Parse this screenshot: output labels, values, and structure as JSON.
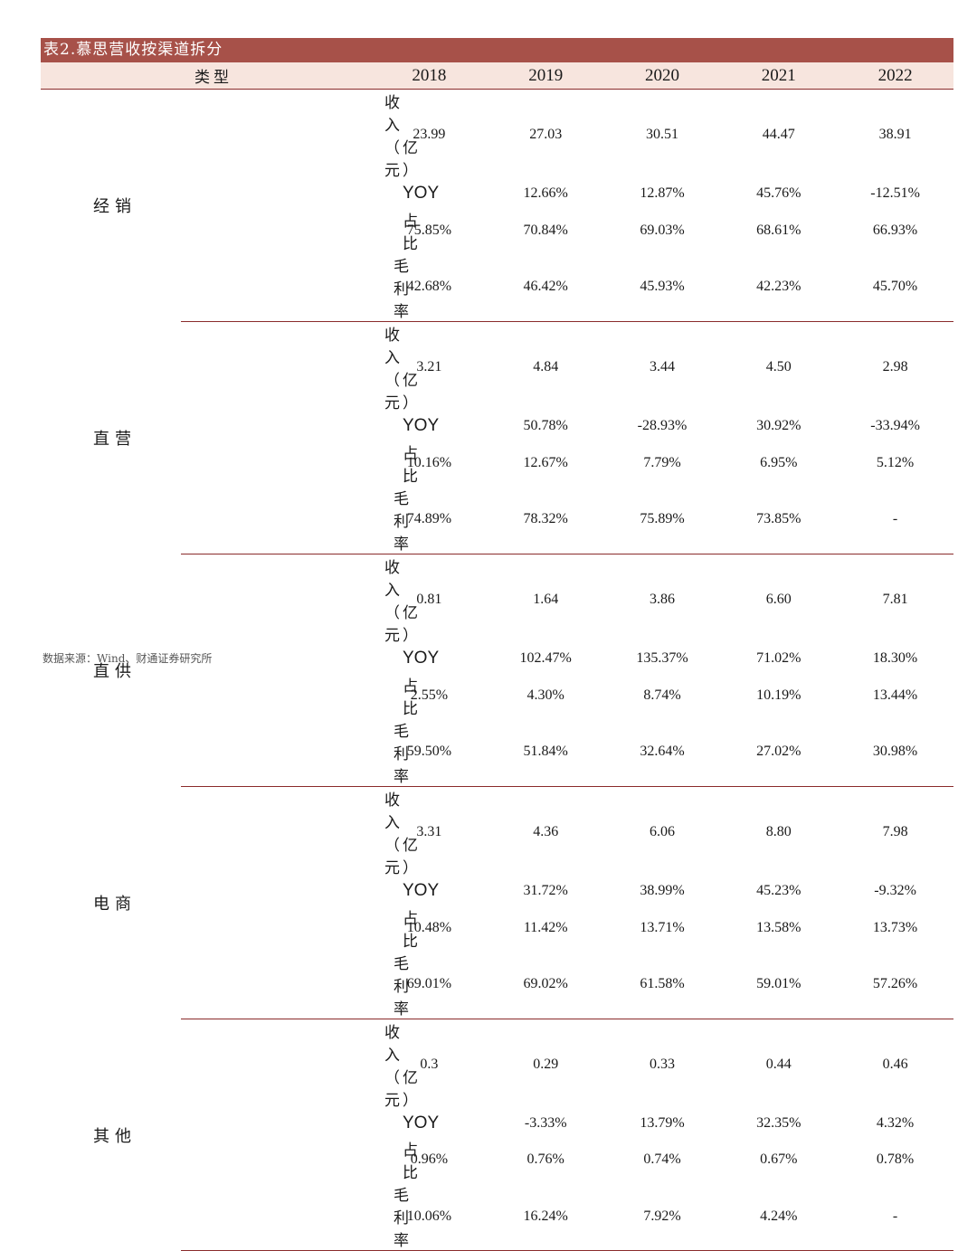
{
  "title": "表2.慕思营收按渠道拆分",
  "header": {
    "type_label": "类型",
    "years": [
      "2018",
      "2019",
      "2020",
      "2021",
      "2022"
    ]
  },
  "metric_labels": [
    "收入（亿元）",
    "YOY",
    "占比",
    "毛利率"
  ],
  "groups": [
    {
      "name": "经销",
      "rows": [
        [
          "23.99",
          "27.03",
          "30.51",
          "44.47",
          "38.91"
        ],
        [
          "",
          "12.66%",
          "12.87%",
          "45.76%",
          "-12.51%"
        ],
        [
          "75.85%",
          "70.84%",
          "69.03%",
          "68.61%",
          "66.93%"
        ],
        [
          "42.68%",
          "46.42%",
          "45.93%",
          "42.23%",
          "45.70%"
        ]
      ]
    },
    {
      "name": "直营",
      "rows": [
        [
          "3.21",
          "4.84",
          "3.44",
          "4.50",
          "2.98"
        ],
        [
          "",
          "50.78%",
          "-28.93%",
          "30.92%",
          "-33.94%"
        ],
        [
          "10.16%",
          "12.67%",
          "7.79%",
          "6.95%",
          "5.12%"
        ],
        [
          "74.89%",
          "78.32%",
          "75.89%",
          "73.85%",
          "-"
        ]
      ]
    },
    {
      "name": "直供",
      "rows": [
        [
          "0.81",
          "1.64",
          "3.86",
          "6.60",
          "7.81"
        ],
        [
          "",
          "102.47%",
          "135.37%",
          "71.02%",
          "18.30%"
        ],
        [
          "2.55%",
          "4.30%",
          "8.74%",
          "10.19%",
          "13.44%"
        ],
        [
          "59.50%",
          "51.84%",
          "32.64%",
          "27.02%",
          "30.98%"
        ]
      ]
    },
    {
      "name": "电商",
      "rows": [
        [
          "3.31",
          "4.36",
          "6.06",
          "8.80",
          "7.98"
        ],
        [
          "",
          "31.72%",
          "38.99%",
          "45.23%",
          "-9.32%"
        ],
        [
          "10.48%",
          "11.42%",
          "13.71%",
          "13.58%",
          "13.73%"
        ],
        [
          "69.01%",
          "69.02%",
          "61.58%",
          "59.01%",
          "57.26%"
        ]
      ]
    },
    {
      "name": "其他",
      "rows": [
        [
          "0.3",
          "0.29",
          "0.33",
          "0.44",
          "0.46"
        ],
        [
          "",
          "-3.33%",
          "13.79%",
          "32.35%",
          "4.32%"
        ],
        [
          "0.96%",
          "0.76%",
          "0.74%",
          "0.67%",
          "0.78%"
        ],
        [
          "10.06%",
          "16.24%",
          "7.92%",
          "4.24%",
          "-"
        ]
      ]
    }
  ],
  "source": "数据来源：Wind、财通证券研究所",
  "colors": {
    "title_bg": "#a75149",
    "header_bg": "#f7e5de",
    "rule": "#8a2b2b"
  }
}
